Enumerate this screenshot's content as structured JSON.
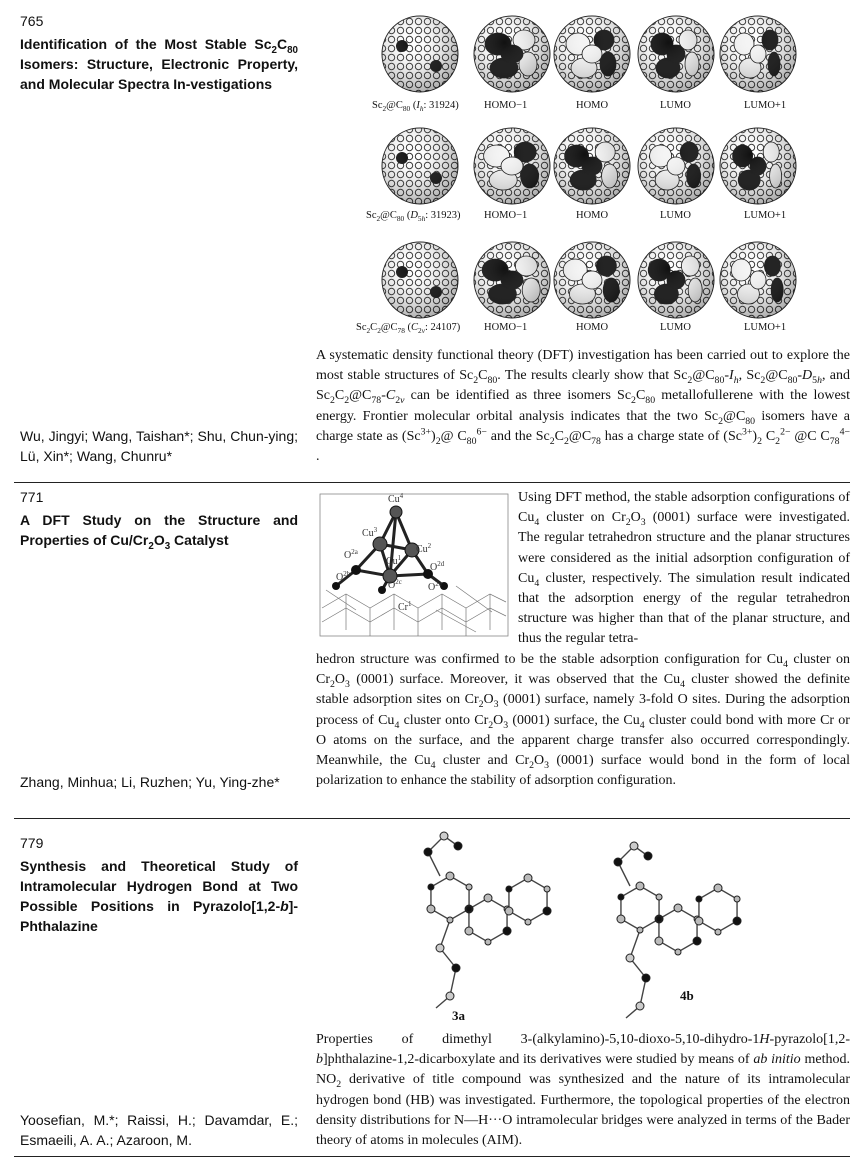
{
  "entries": [
    {
      "page": "765",
      "title_html": "Identification of the Most Stable Sc<sub>2</sub>C<sub>80</sub> Isomers: Structure, Electronic Property, and Molecular Spectra In-vestigations",
      "authors": "Wu, Jingyi; Wang, Taishan*; Shu, Chun-ying; Lü, Xin*; Wang, Chunru*",
      "abstract_html": "A systematic density functional theory (DFT) investigation has been carried out to explore the most stable structures of Sc<sub>2</sub>C<sub>80</sub>. The results clearly show that Sc<sub>2</sub>@C<sub>80</sub>-<i>I<sub>h</sub></i>, Sc<sub>2</sub>@C<sub>80</sub>-<i>D</i><sub>5<i>h</i></sub>, and Sc<sub>2</sub>C<sub>2</sub>@C<sub>78</sub>-<i>C</i><sub>2<i>v</i></sub> can be identified as three isomers Sc<sub>2</sub>C<sub>80</sub> metallofullerene with the lowest energy. Frontier molecular orbital analysis indicates that the two Sc<sub>2</sub>@C<sub>80</sub> isomers have a charge state as (Sc<sup>3+</sup>)<sub>2</sub>@ C<sub>80</sub><sup>6−</sup> and the Sc<sub>2</sub>C<sub>2</sub>@C<sub>78</sub> has a charge state of (Sc<sup>3+</sup>)<sub>2</sub> C<sub>2</sub><sup>2−</sup> @C C<sub>78</sub><sup>4−</sup> .",
      "figure_rows": [
        {
          "label_html": "Sc<sub>2</sub>@C<sub>80</sub> (<i>I<sub>h</sub></i>: 31924)",
          "orbitals": [
            "HOMO−1",
            "HOMO",
            "LUMO",
            "LUMO+1"
          ]
        },
        {
          "label_html": "Sc<sub>2</sub>@C<sub>80</sub> (<i>D</i><sub>5<i>h</i></sub>: 31923)",
          "orbitals": [
            "HOMO−1",
            "HOMO",
            "LUMO",
            "LUMO+1"
          ]
        },
        {
          "label_html": "Sc<sub>2</sub>C<sub>2</sub>@C<sub>78</sub> (<i>C</i><sub>2<i>v</i></sub>: 24107)",
          "orbitals": [
            "HOMO−1",
            "HOMO",
            "LUMO",
            "LUMO+1"
          ]
        }
      ]
    },
    {
      "page": "771",
      "title_html": "A DFT Study on the Structure and Properties of Cu/Cr<sub>2</sub>O<sub>3</sub> Catalyst",
      "authors": "Zhang, Minhua; Li, Ruzhen; Yu, Ying-zhe*",
      "abstract_top_html": "Using DFT method, the stable adsorption configurations of Cu<sub>4</sub> cluster on Cr<sub>2</sub>O<sub>3</sub> (0001) surface were investigated. The regular tetrahedron structure and the planar structures were considered as the initial adsorption configuration of Cu<sub>4</sub> cluster, respectively. The simulation result indicated that the adsorption energy of the regular tetrahedron structure was higher than that of the planar structure, and thus the regular tetra-",
      "abstract_bottom_html": "hedron structure was confirmed to be the stable adsorption configuration for Cu<sub>4</sub> cluster on Cr<sub>2</sub>O<sub>3</sub> (0001) surface. Moreover, it was observed that the Cu<sub>4</sub> cluster showed the definite stable adsorption sites on Cr<sub>2</sub>O<sub>3</sub> (0001) surface, namely 3-fold O sites. During the adsorption process of Cu<sub>4</sub> cluster onto Cr<sub>2</sub>O<sub>3</sub> (0001) surface, the Cu<sub>4</sub> cluster could bond with more Cr or O atoms on the surface, and the apparent charge transfer also occurred correspondingly. Meanwhile, the Cu<sub>4</sub> cluster and Cr<sub>2</sub>O<sub>3</sub> (0001) surface would bond in the form of local polarization to enhance the stability of adsorption configuration.",
      "figure_labels": [
        "Cu<sup>4</sup>",
        "Cu<sup>3</sup>",
        "O<sup>2a</sup>",
        "O<sup>2b</sup>",
        "Cu<sup>1</sup>",
        "Cu<sup>2</sup>",
        "O<sup>2c</sup>",
        "O<sup>2d</sup>",
        "Cr<sup>1</sup>",
        "O<sup>2e</sup>"
      ]
    },
    {
      "page": "779",
      "title_html": "Synthesis and Theoretical Study of Intramolecular Hydrogen Bond at Two Possible Positions in Pyrazolo[1,2-<i>b</i>]-Phthalazine",
      "authors": "Yoosefian, M.*; Raissi, H.; Davamdar, E.; Esmaeili, A. A.; Azaroon, M.",
      "abstract_html": "Properties of dimethyl 3-(alkylamino)-5,10-dioxo-5,10-dihydro-1<i>H</i>-pyrazolo[1,2-<i>b</i>]phthalazine-1,2-dicarboxylate and its derivatives were studied by means of <i>ab initio</i> method. NO<sub>2</sub> derivative of title compound was synthesized and the nature of its intramolecular hydrogen bond (HB) was investigated. Furthermore, the topological properties of the electron density distributions for N—H···O intramolecular bridges were analyzed in terms of the Bader theory of atoms in molecules (AIM).",
      "figure_labels": [
        "3a",
        "4b"
      ]
    }
  ]
}
